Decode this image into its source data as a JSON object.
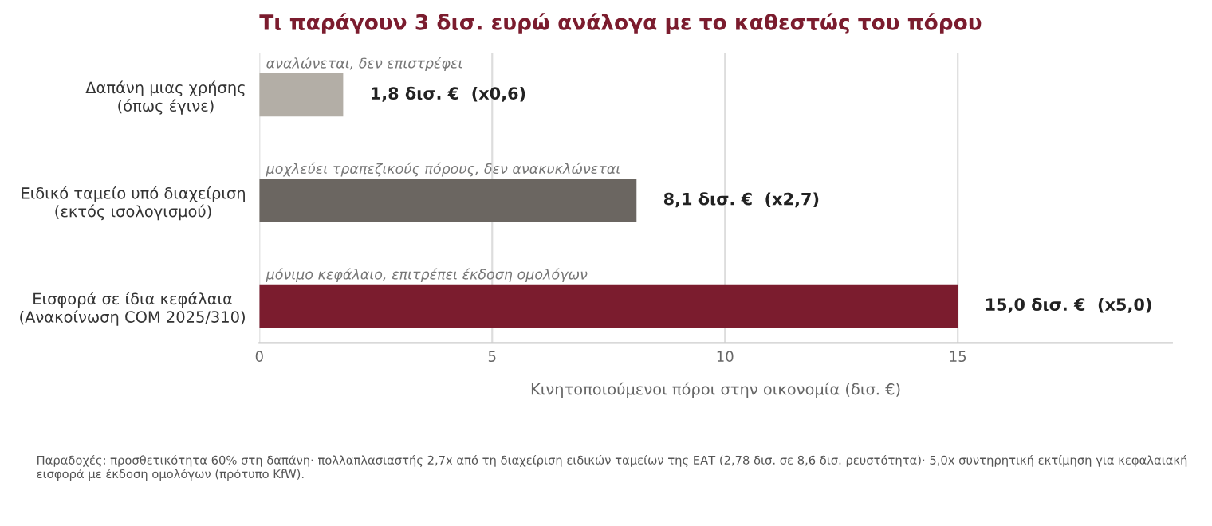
{
  "chart_data": {
    "type": "bar",
    "orientation": "horizontal",
    "title": "Τι παράγουν 3 δισ. ευρώ ανάλογα με το καθεστώς του πόρου",
    "categories": [
      "Δαπάνη μιας χρήσης\n(όπως έγινε)",
      "Ειδικό ταμείο υπό διαχείριση\n(εκτός ισολογισμού)",
      "Εισφορά σε ίδια κεφάλαια\n(Ανακοίνωση COM 2025/310)"
    ],
    "values": [
      1.8,
      8.1,
      15.0
    ],
    "colors": [
      "#b3aea6",
      "#6b6661",
      "#7b1c2e"
    ],
    "value_labels": [
      "1,8 δισ. €  (x0,6)",
      "8,1 δισ. €  (x2,7)",
      "15,0 δισ. €  (x5,0)"
    ],
    "xlabel": "Κινητοποιούμενοι πόροι στην οικονομία (δισ. €)",
    "xlim": [
      0,
      19.6
    ],
    "xticks": [
      0,
      5,
      10,
      15
    ],
    "grid": "x",
    "annotations": [
      "αναλώνεται, δεν επιστρέφει",
      "μοχλεύει τραπεζικούς πόρους, δεν ανακυκλώνεται",
      "μόνιμο κεφάλαιο, επιτρέπει έκδοση ομολόγων",
      "Παραδοχές: προσθετικότητα 60% στη δαπάνη· πολλαπλασιαστής 2,7x από τη διαχείριση ειδικών ταμείων της ΕΑΤ (2,78 δισ. σε 8,6 δισ. ρευστότητα)· 5,0x συντηρητική εκτίμηση για κεφαλαιακή εισφορά με έκδοση ομολόγων (πρότυπο KfW)."
    ]
  }
}
